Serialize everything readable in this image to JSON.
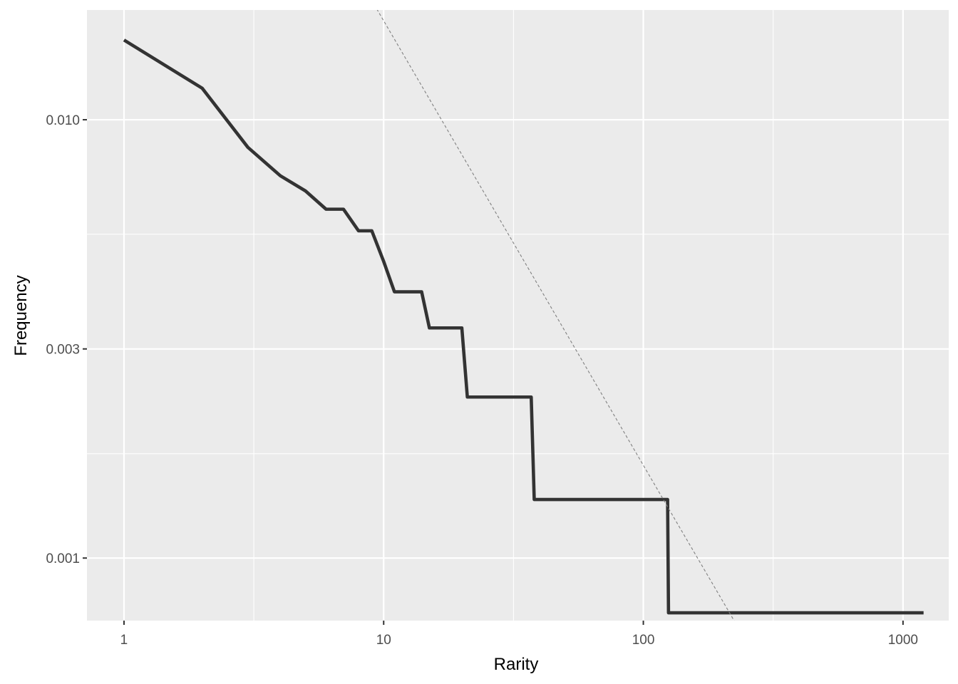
{
  "chart_data": {
    "type": "line",
    "title": "",
    "xlabel": "Rarity",
    "ylabel": "Frequency",
    "x_scale": "log10",
    "y_scale": "log10",
    "xlim": [
      0.72,
      1500
    ],
    "ylim": [
      0.00072,
      0.0178
    ],
    "x_ticks": [
      {
        "value": 1,
        "label": "1"
      },
      {
        "value": 10,
        "label": "10"
      },
      {
        "value": 100,
        "label": "100"
      },
      {
        "value": 1000,
        "label": "1000"
      }
    ],
    "x_minor_ticks": [
      3.162,
      31.62,
      316.2
    ],
    "y_ticks": [
      {
        "value": 0.001,
        "label": "0.001"
      },
      {
        "value": 0.003,
        "label": "0.003"
      },
      {
        "value": 0.01,
        "label": "0.010"
      }
    ],
    "y_minor_ticks": [
      0.00173,
      0.00548
    ],
    "grid": true,
    "legend": "none",
    "panel_background": "#ebebeb",
    "grid_color": "#ffffff",
    "series": [
      {
        "color": "#333333",
        "style": "solid",
        "x": [
          1,
          2,
          3,
          4,
          5,
          6,
          7,
          8,
          9,
          10,
          11,
          14,
          15,
          20,
          21,
          37,
          38,
          124,
          125,
          1200
        ],
        "y": [
          0.0152,
          0.0118,
          0.00865,
          0.00745,
          0.00688,
          0.00625,
          0.00625,
          0.00558,
          0.00558,
          0.00475,
          0.00405,
          0.00405,
          0.00335,
          0.00335,
          0.00233,
          0.00233,
          0.00136,
          0.00136,
          0.00075,
          0.00075
        ]
      },
      {
        "color": "#808080",
        "style": "dashed",
        "x": [
          9.2,
          240
        ],
        "y": [
          0.0183,
          0.00067
        ]
      }
    ]
  }
}
